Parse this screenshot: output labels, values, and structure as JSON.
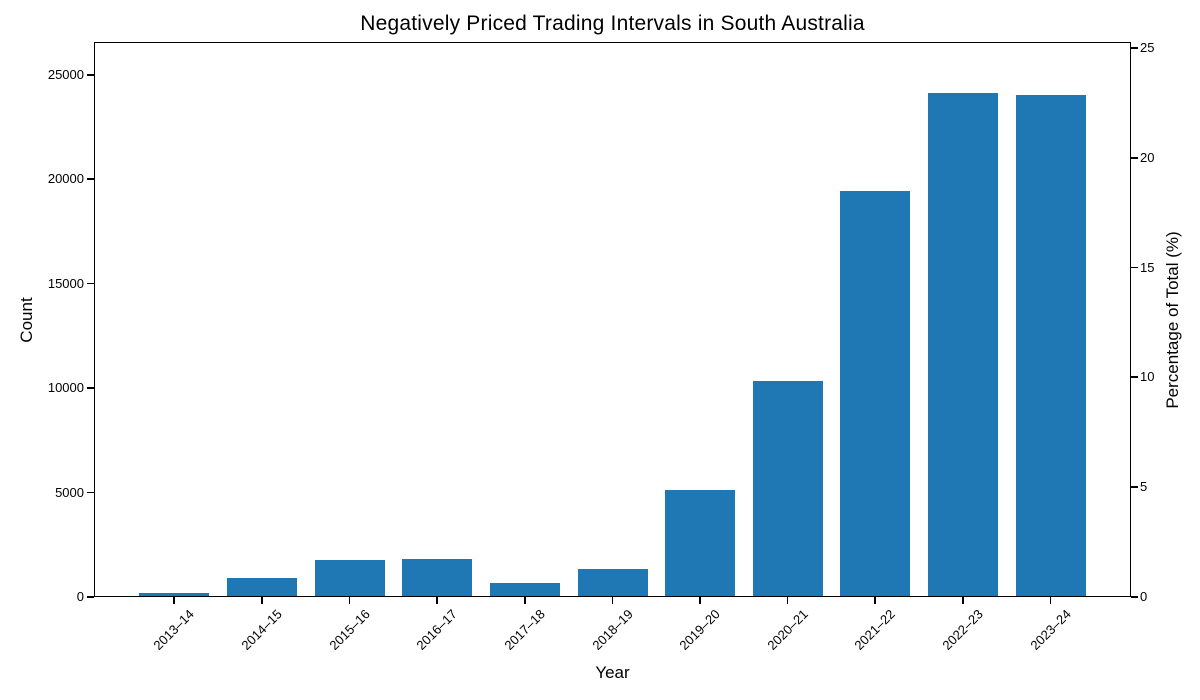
{
  "chart_data": {
    "type": "bar",
    "title": "Negatively Priced Trading Intervals in South Australia",
    "xlabel": "Year",
    "ylabel_left": "Count",
    "ylabel_right": "Percentage of Total (%)",
    "categories": [
      "2013–14",
      "2014–15",
      "2015–16",
      "2016–17",
      "2017–18",
      "2018–19",
      "2019–20",
      "2020–21",
      "2021–22",
      "2022–23",
      "2023–24"
    ],
    "series": [
      {
        "name": "Count",
        "axis": "left",
        "values": [
          170,
          890,
          1770,
          1830,
          690,
          1330,
          5120,
          10360,
          19450,
          24140,
          24050
        ]
      },
      {
        "name": "Percentage of Total (%)",
        "axis": "right",
        "values": [
          0.16,
          0.85,
          1.68,
          1.74,
          0.66,
          1.27,
          4.87,
          9.85,
          18.5,
          22.96,
          22.88
        ]
      }
    ],
    "bar_color": "#1f77b4",
    "axis_color": "#000000",
    "background_color": "#ffffff",
    "ylim_left": [
      0,
      26580
    ],
    "ylim_right": [
      0,
      25.28
    ],
    "yticks_left": [
      0,
      5000,
      10000,
      15000,
      20000,
      25000
    ],
    "yticks_right": [
      0,
      5,
      10,
      15,
      20,
      25
    ],
    "x_tick_rotation": 45,
    "grid": false,
    "legend": false
  }
}
